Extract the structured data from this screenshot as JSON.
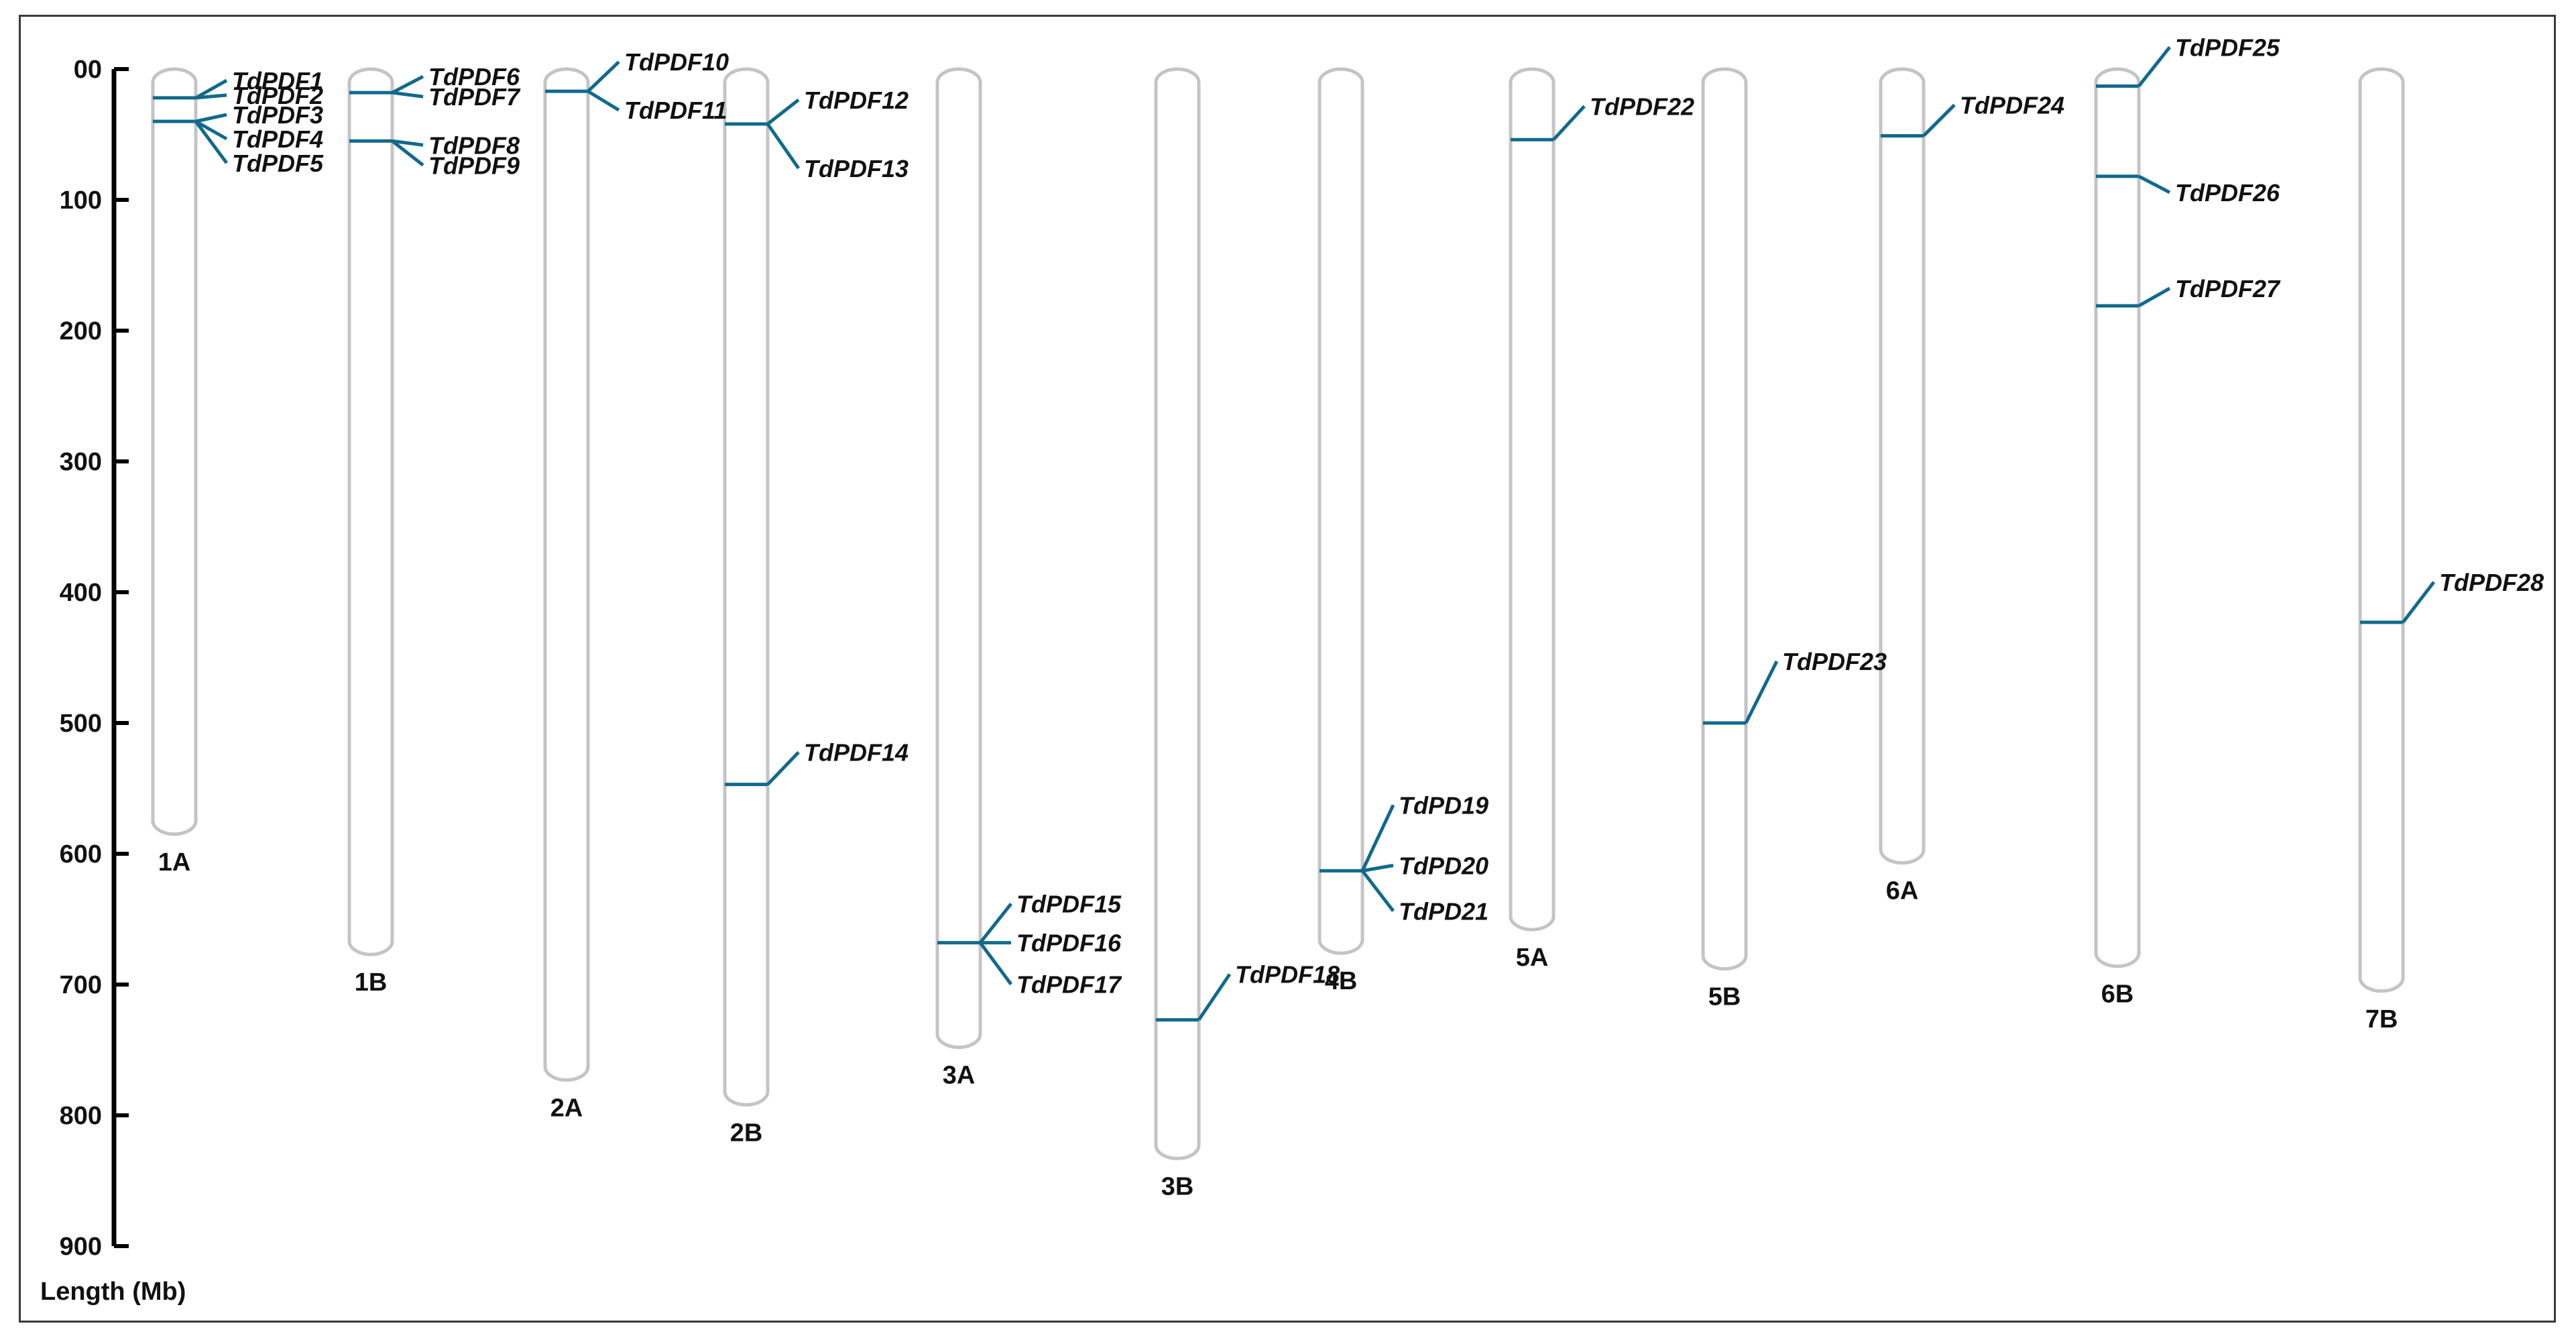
{
  "axis": {
    "title": "Length (Mb)",
    "ticks": [
      "00",
      "100",
      "200",
      "300",
      "400",
      "500",
      "600",
      "700",
      "800",
      "900"
    ],
    "tick_values": [
      0,
      100,
      200,
      300,
      400,
      500,
      600,
      700,
      800,
      900
    ],
    "range": [
      0,
      900
    ]
  },
  "colors": {
    "marker": "#106a8c",
    "chromosome_outline": "#c4c4c4",
    "axis": "#000000"
  },
  "chart_data": {
    "type": "chromosome-map",
    "chromosomes": [
      {
        "name": "1A",
        "length": 585
      },
      {
        "name": "1B",
        "length": 677
      },
      {
        "name": "2A",
        "length": 773
      },
      {
        "name": "2B",
        "length": 792
      },
      {
        "name": "3A",
        "length": 748
      },
      {
        "name": "3B",
        "length": 833
      },
      {
        "name": "4B",
        "length": 676
      },
      {
        "name": "5A",
        "length": 658
      },
      {
        "name": "5B",
        "length": 688
      },
      {
        "name": "6A",
        "length": 607
      },
      {
        "name": "6B",
        "length": 686
      },
      {
        "name": "7B",
        "length": 705
      }
    ],
    "genes": [
      {
        "name": "TdPDF1",
        "chromosome": "1A",
        "position": 22
      },
      {
        "name": "TdPDF2",
        "chromosome": "1A",
        "position": 22
      },
      {
        "name": "TdPDF3",
        "chromosome": "1A",
        "position": 40
      },
      {
        "name": "TdPDF4",
        "chromosome": "1A",
        "position": 40
      },
      {
        "name": "TdPDF5",
        "chromosome": "1A",
        "position": 40
      },
      {
        "name": "TdPDF6",
        "chromosome": "1B",
        "position": 18
      },
      {
        "name": "TdPDF7",
        "chromosome": "1B",
        "position": 18
      },
      {
        "name": "TdPDF8",
        "chromosome": "1B",
        "position": 55
      },
      {
        "name": "TdPDF9",
        "chromosome": "1B",
        "position": 55
      },
      {
        "name": "TdPDF10",
        "chromosome": "2A",
        "position": 17
      },
      {
        "name": "TdPDF11",
        "chromosome": "2A",
        "position": 17
      },
      {
        "name": "TdPDF12",
        "chromosome": "2B",
        "position": 42
      },
      {
        "name": "TdPDF13",
        "chromosome": "2B",
        "position": 42
      },
      {
        "name": "TdPDF14",
        "chromosome": "2B",
        "position": 547
      },
      {
        "name": "TdPDF15",
        "chromosome": "3A",
        "position": 668
      },
      {
        "name": "TdPDF16",
        "chromosome": "3A",
        "position": 668
      },
      {
        "name": "TdPDF17",
        "chromosome": "3A",
        "position": 668
      },
      {
        "name": "TdPDF18",
        "chromosome": "3B",
        "position": 727
      },
      {
        "name": "TdPD19",
        "chromosome": "4B",
        "position": 613
      },
      {
        "name": "TdPD20",
        "chromosome": "4B",
        "position": 613
      },
      {
        "name": "TdPD21",
        "chromosome": "4B",
        "position": 613
      },
      {
        "name": "TdPDF22",
        "chromosome": "5A",
        "position": 54
      },
      {
        "name": "TdPDF23",
        "chromosome": "5B",
        "position": 500
      },
      {
        "name": "TdPDF24",
        "chromosome": "6A",
        "position": 51
      },
      {
        "name": "TdPDF25",
        "chromosome": "6B",
        "position": 13
      },
      {
        "name": "TdPDF26",
        "chromosome": "6B",
        "position": 82
      },
      {
        "name": "TdPDF27",
        "chromosome": "6B",
        "position": 181
      },
      {
        "name": "TdPDF28",
        "chromosome": "7B",
        "position": 423
      }
    ]
  }
}
